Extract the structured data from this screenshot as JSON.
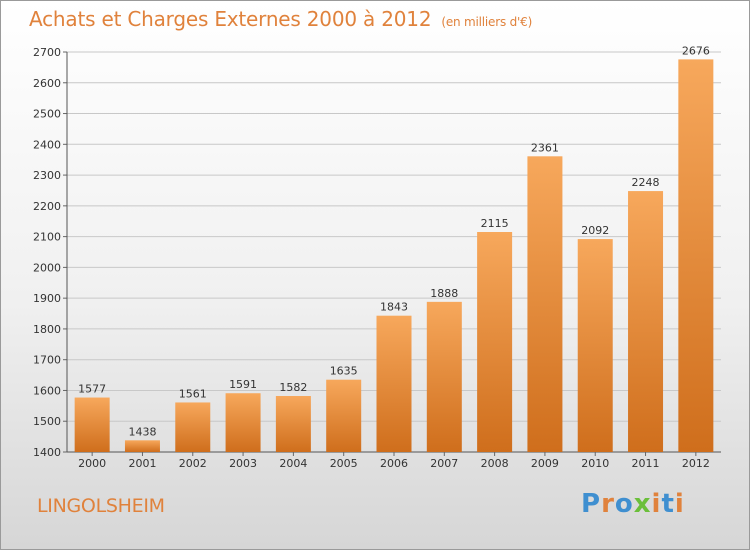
{
  "header": {
    "title": "Achats et Charges Externes 2000 à 2012",
    "unit": "(en milliers d'€)"
  },
  "footer": {
    "city": "LINGOLSHEIM",
    "brand": "Proxiti"
  },
  "colors": {
    "bar_top": "#f7a85c",
    "bar_bottom": "#cf6e1c",
    "title": "#e0823c",
    "brand": [
      "#3f8fd0",
      "#e0823c",
      "#3f8fd0",
      "#6bbf3a",
      "#e0823c",
      "#3f8fd0",
      "#e0823c"
    ]
  },
  "chart_data": {
    "type": "bar",
    "title": "Achats et Charges Externes 2000 à 2012",
    "subtitle": "(en milliers d'€)",
    "xlabel": "",
    "ylabel": "",
    "categories": [
      "2000",
      "2001",
      "2002",
      "2003",
      "2004",
      "2005",
      "2006",
      "2007",
      "2008",
      "2009",
      "2010",
      "2011",
      "2012"
    ],
    "values": [
      1577,
      1438,
      1561,
      1591,
      1582,
      1635,
      1843,
      1888,
      2115,
      2361,
      2092,
      2248,
      2676
    ],
    "ylim": [
      1400,
      2700
    ],
    "yticks": [
      1400,
      1500,
      1600,
      1700,
      1800,
      1900,
      2000,
      2100,
      2200,
      2300,
      2400,
      2500,
      2600,
      2700
    ],
    "grid": true,
    "data_labels": true
  }
}
